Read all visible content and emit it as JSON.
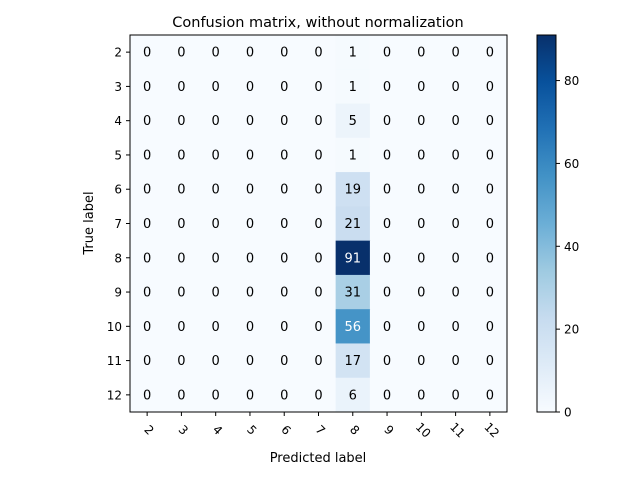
{
  "chart_data": {
    "type": "heatmap",
    "title": "Confusion matrix, without normalization",
    "xlabel": "Predicted label",
    "ylabel": "True label",
    "x_categories": [
      "2",
      "3",
      "4",
      "5",
      "6",
      "7",
      "8",
      "9",
      "10",
      "11",
      "12"
    ],
    "y_categories": [
      "2",
      "3",
      "4",
      "5",
      "6",
      "7",
      "8",
      "9",
      "10",
      "11",
      "12"
    ],
    "matrix": [
      [
        0,
        0,
        0,
        0,
        0,
        0,
        1,
        0,
        0,
        0,
        0
      ],
      [
        0,
        0,
        0,
        0,
        0,
        0,
        1,
        0,
        0,
        0,
        0
      ],
      [
        0,
        0,
        0,
        0,
        0,
        0,
        5,
        0,
        0,
        0,
        0
      ],
      [
        0,
        0,
        0,
        0,
        0,
        0,
        1,
        0,
        0,
        0,
        0
      ],
      [
        0,
        0,
        0,
        0,
        0,
        0,
        19,
        0,
        0,
        0,
        0
      ],
      [
        0,
        0,
        0,
        0,
        0,
        0,
        21,
        0,
        0,
        0,
        0
      ],
      [
        0,
        0,
        0,
        0,
        0,
        0,
        91,
        0,
        0,
        0,
        0
      ],
      [
        0,
        0,
        0,
        0,
        0,
        0,
        31,
        0,
        0,
        0,
        0
      ],
      [
        0,
        0,
        0,
        0,
        0,
        0,
        56,
        0,
        0,
        0,
        0
      ],
      [
        0,
        0,
        0,
        0,
        0,
        0,
        17,
        0,
        0,
        0,
        0
      ],
      [
        0,
        0,
        0,
        0,
        0,
        0,
        6,
        0,
        0,
        0,
        0
      ]
    ],
    "colorbar": {
      "range": [
        0,
        91
      ],
      "ticks": [
        0,
        20,
        40,
        60,
        80
      ],
      "colormap": "Blues"
    },
    "x_tick_rotation_deg": 45,
    "grid": false
  }
}
